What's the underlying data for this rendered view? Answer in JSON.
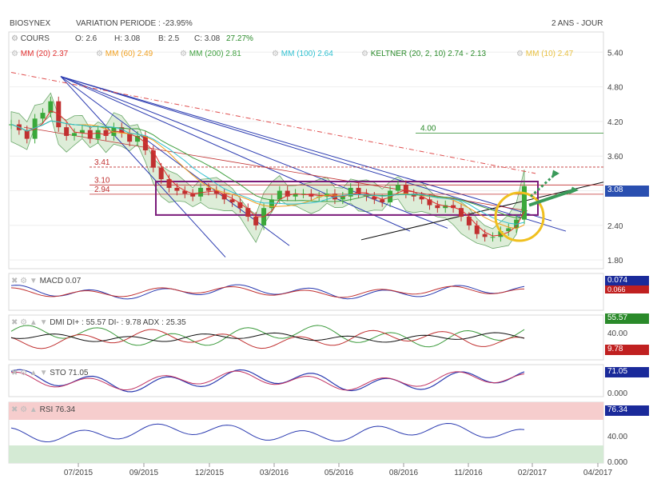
{
  "header": {
    "symbol": "BIOSYNEX",
    "variation_label": "VARIATION PERIODE : -23.95%",
    "period": "2 ANS - JOUR"
  },
  "legend_row1": {
    "cours": "COURS",
    "open": "O: 2.6",
    "high": "H: 3.08",
    "low": "B: 2.5",
    "close": "C: 3.08",
    "change": "27.27%"
  },
  "legend_row2": [
    {
      "label": "MM (20)",
      "value": "2.37",
      "color": "#e03030"
    },
    {
      "label": "MM (60)",
      "value": "2.49",
      "color": "#f0a020"
    },
    {
      "label": "MM (200)",
      "value": "2.81",
      "color": "#40a040"
    },
    {
      "label": "MM (100)",
      "value": "2.64",
      "color": "#30c0d0"
    },
    {
      "label": "KELTNER (20, 2, 10)",
      "value": "2.74 - 2.13",
      "color": "#2a8a2a"
    },
    {
      "label": "MM (10)",
      "value": "2.47",
      "color": "#e8c040"
    }
  ],
  "indicators": {
    "macd": {
      "label": "MACD",
      "value": "0.07",
      "badge": "0.074",
      "badge2": "0.066"
    },
    "dmi": {
      "label": "DMI",
      "text": "DI+ : 55.57 DI- : 9.78 ADX : 25.35",
      "badge_plus": "55.57",
      "badge_minus": "9.78",
      "tick": "40.00",
      "tick0": "0.000"
    },
    "sto": {
      "label": "STO",
      "value": "71.05",
      "badge": "71.05",
      "tick": "40.00",
      "tick0": "0.000"
    },
    "rsi": {
      "label": "RSI",
      "value": "76.34",
      "badge": "76.34",
      "tick": "40.00",
      "tick0": "0.000"
    }
  },
  "chart_data": {
    "type": "candlestick",
    "price_axis": {
      "ticks": [
        5.4,
        4.8,
        4.2,
        3.6,
        3.0,
        2.4,
        1.8
      ],
      "ylim": [
        1.65,
        5.75
      ]
    },
    "x_ticks": [
      "07/2015",
      "09/2015",
      "12/2015",
      "03/2016",
      "05/2016",
      "08/2016",
      "11/2016",
      "02/2017",
      "04/2017"
    ],
    "last_price_badge": "3.08",
    "levels": [
      {
        "label": "4.00",
        "value": 4.0,
        "color": "#2a8a2a"
      },
      {
        "label": "3.41",
        "value": 3.41,
        "color": "#c03030"
      },
      {
        "label": "3.10",
        "value": 3.1,
        "color": "#c03030"
      },
      {
        "label": "2.94",
        "value": 2.94,
        "color": "#c03030"
      }
    ],
    "range_box": {
      "top": 3.16,
      "bottom": 2.58
    },
    "close_series": [
      4.15,
      4.05,
      3.9,
      4.25,
      4.35,
      4.55,
      4.1,
      3.95,
      4.0,
      4.05,
      3.9,
      4.05,
      3.95,
      4.1,
      4.0,
      3.85,
      3.95,
      3.7,
      3.4,
      3.2,
      3.05,
      3.0,
      2.95,
      2.9,
      3.05,
      3.0,
      2.95,
      2.85,
      2.8,
      2.7,
      2.55,
      2.4,
      2.7,
      2.85,
      3.0,
      2.9,
      2.95,
      2.95,
      2.9,
      2.9,
      2.95,
      2.85,
      2.9,
      3.05,
      2.95,
      2.9,
      2.85,
      2.8,
      3.0,
      3.1,
      2.95,
      2.9,
      2.85,
      2.75,
      2.7,
      2.75,
      2.7,
      2.55,
      2.4,
      2.25,
      2.2,
      2.2,
      2.3,
      2.35,
      2.5,
      3.08
    ]
  }
}
